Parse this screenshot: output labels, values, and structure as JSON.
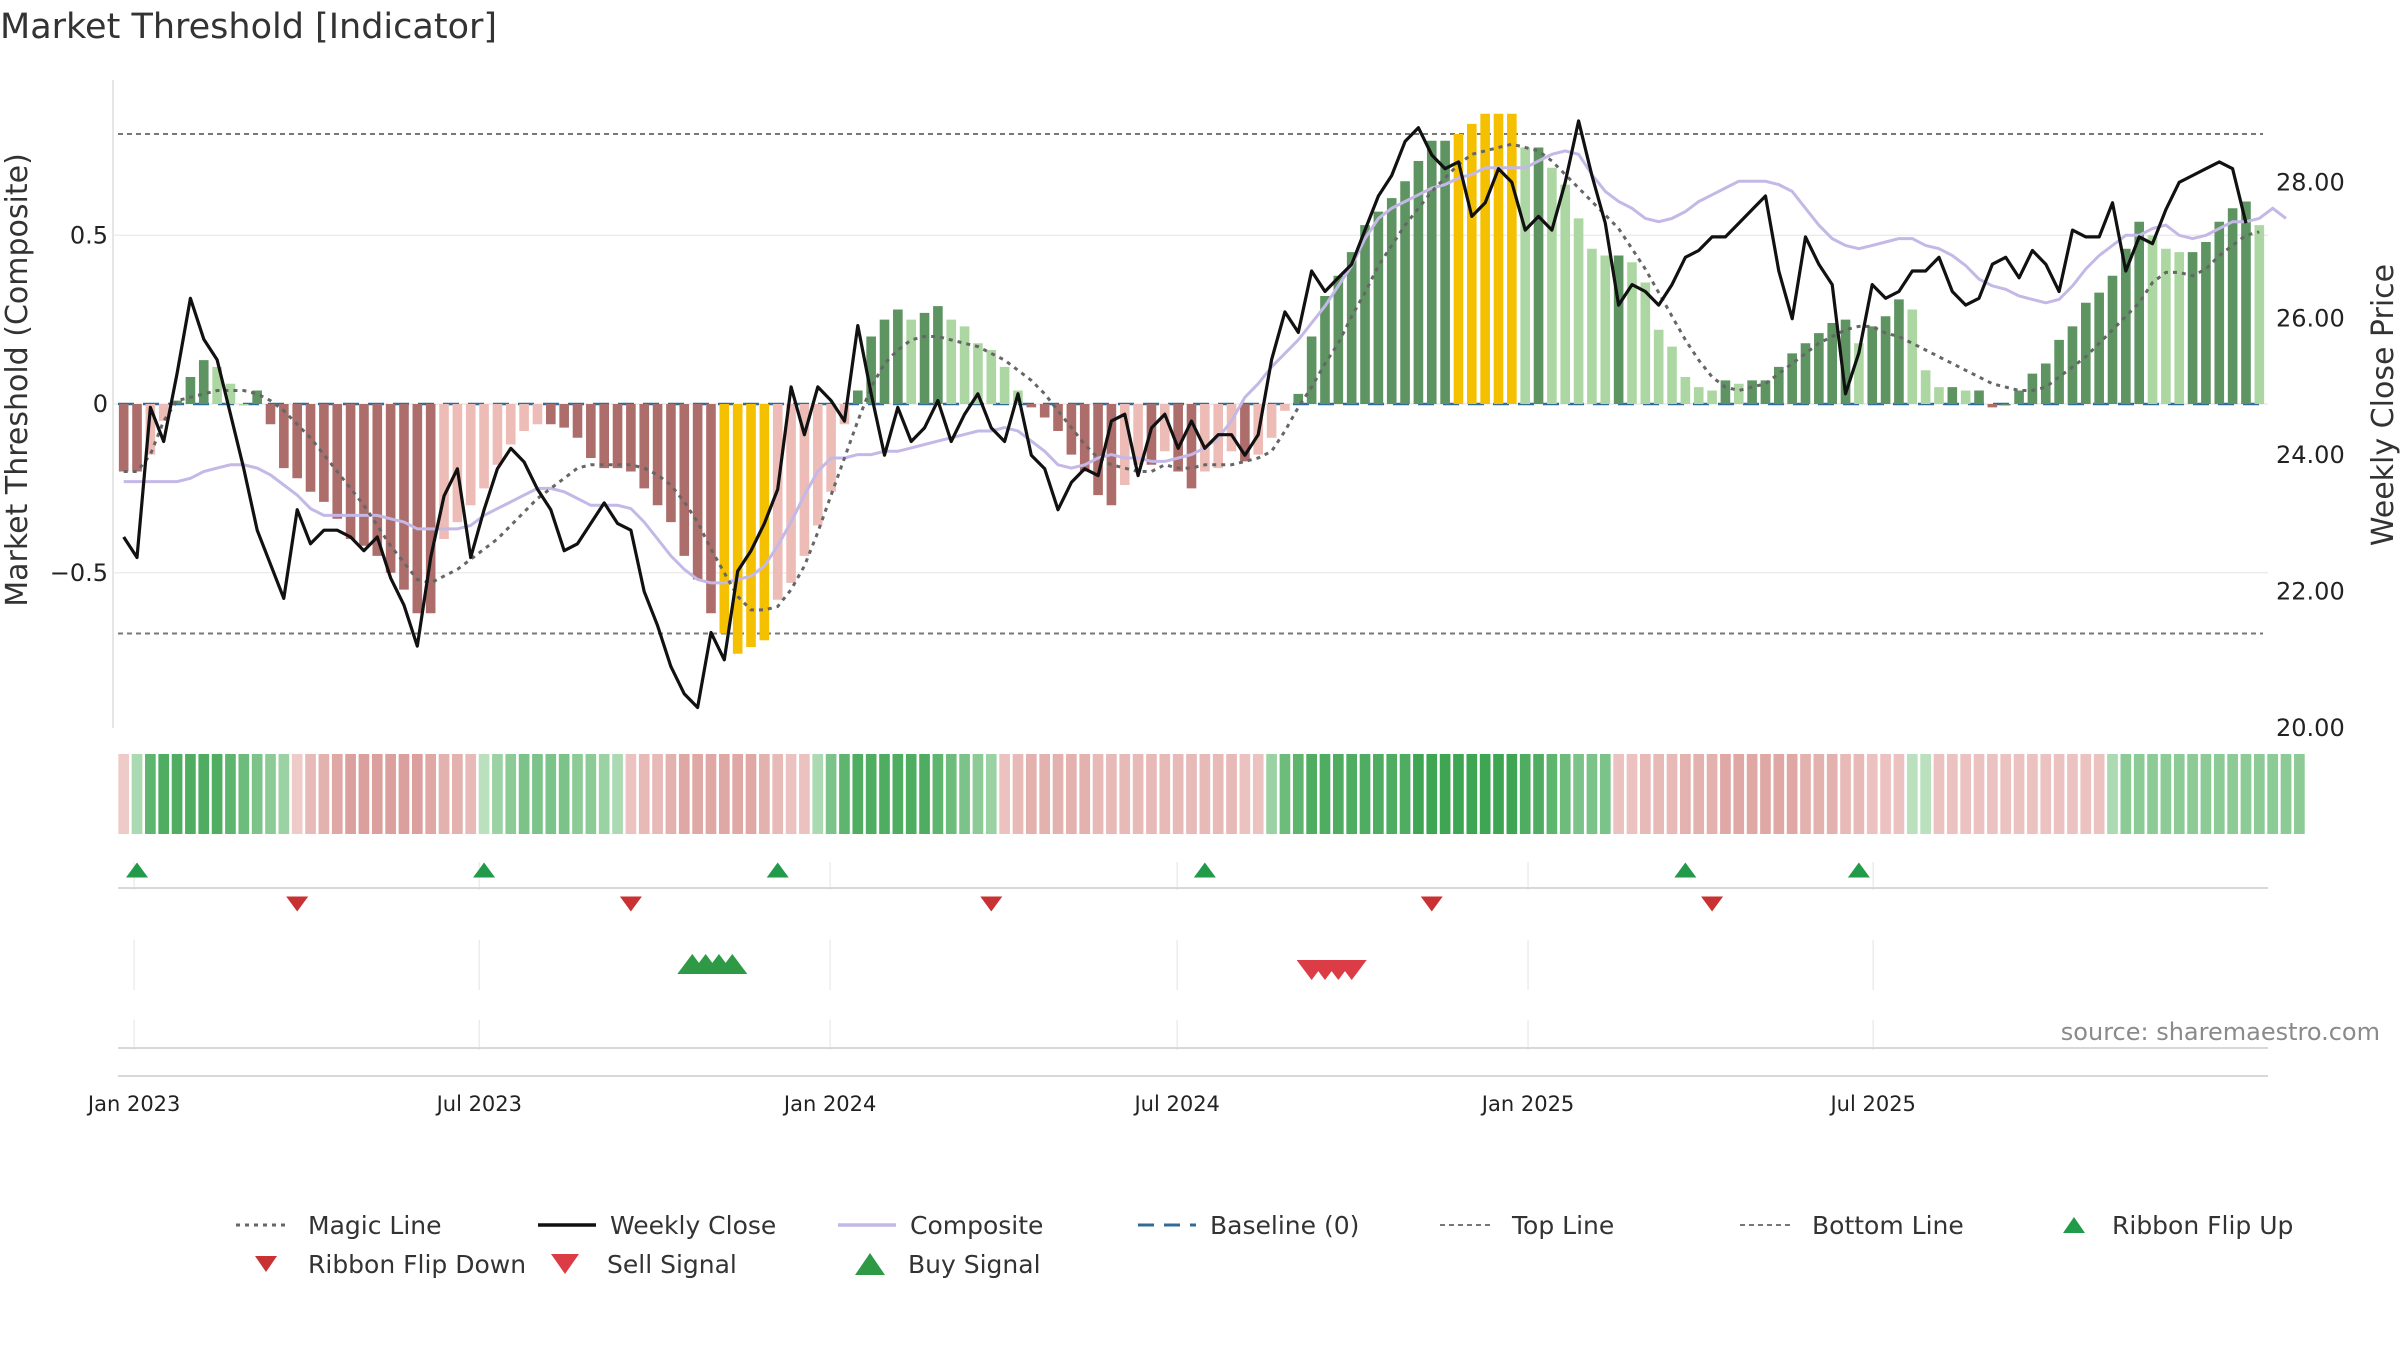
{
  "chart_data": {
    "type": "bar",
    "title": "Market Threshold [Indicator]",
    "ylabel_left": "Market Threshold (Composite)",
    "ylabel_right": "Weekly Close Price",
    "source": "source: sharemaestro.com",
    "left_axis": {
      "ylim": [
        -0.96,
        0.96
      ],
      "ticks": [
        0.5,
        0,
        -0.5
      ],
      "tick_labels": [
        "0.5",
        "0",
        "−0.5"
      ]
    },
    "right_axis": {
      "ylim": [
        20.0,
        29.5
      ],
      "ticks": [
        28,
        26,
        24,
        22,
        20
      ],
      "tick_labels": [
        "28.00",
        "26.00",
        "24.00",
        "22.00",
        "20.00"
      ]
    },
    "top_line": 0.8,
    "bottom_line": -0.68,
    "baseline": 0,
    "grid": true,
    "legend_position": "bottom",
    "x_start": "2022-12-23",
    "x_ticks": [
      "2023-01-01",
      "2023-07-01",
      "2024-01-01",
      "2024-07-01",
      "2025-01-01",
      "2025-07-01"
    ],
    "x_tick_labels": [
      "Jan 2023",
      "Jul 2023",
      "Jan 2024",
      "Jul 2024",
      "Jan 2025",
      "Jul 2025"
    ],
    "composite_bars": [
      -0.2,
      -0.2,
      -0.15,
      -0.05,
      0.01,
      0.08,
      0.13,
      0.11,
      0.06,
      0,
      0.04,
      -0.06,
      -0.19,
      -0.22,
      -0.26,
      -0.29,
      -0.34,
      -0.4,
      -0.42,
      -0.45,
      -0.5,
      -0.55,
      -0.62,
      -0.62,
      -0.4,
      -0.35,
      -0.3,
      -0.25,
      -0.18,
      -0.12,
      -0.08,
      -0.06,
      -0.06,
      -0.07,
      -0.1,
      -0.16,
      -0.19,
      -0.19,
      -0.2,
      -0.25,
      -0.3,
      -0.35,
      -0.45,
      -0.52,
      -0.62,
      -0.68,
      -0.74,
      -0.72,
      -0.7,
      -0.58,
      -0.53,
      -0.45,
      -0.36,
      -0.26,
      -0.06,
      0.04,
      0.2,
      0.25,
      0.28,
      0.25,
      0.27,
      0.29,
      0.25,
      0.23,
      0.18,
      0.16,
      0.11,
      0.04,
      -0.01,
      -0.04,
      -0.08,
      -0.15,
      -0.2,
      -0.27,
      -0.3,
      -0.24,
      -0.18,
      -0.18,
      -0.14,
      -0.2,
      -0.25,
      -0.2,
      -0.19,
      -0.14,
      -0.17,
      -0.15,
      -0.1,
      -0.02,
      0.03,
      0.2,
      0.32,
      0.38,
      0.45,
      0.53,
      0.57,
      0.61,
      0.66,
      0.72,
      0.78,
      0.78,
      0.8,
      0.83,
      0.86,
      0.86,
      0.86,
      0.76,
      0.76,
      0.7,
      0.65,
      0.55,
      0.46,
      0.44,
      0.44,
      0.42,
      0.36,
      0.22,
      0.17,
      0.08,
      0.05,
      0.04,
      0.07,
      0.06,
      0.07,
      0.07,
      0.11,
      0.15,
      0.18,
      0.21,
      0.24,
      0.25,
      0.18,
      0.23,
      0.26,
      0.31,
      0.28,
      0.1,
      0.05,
      0.05,
      0.04,
      0.04,
      -0.01,
      0,
      0.04,
      0.09,
      0.12,
      0.19,
      0.23,
      0.3,
      0.33,
      0.38,
      0.46,
      0.54,
      0.5,
      0.46,
      0.45,
      0.45,
      0.48,
      0.54,
      0.58,
      0.6,
      0.53
    ],
    "weekly_close": [
      22.8,
      22.5,
      24.7,
      24.2,
      25.2,
      26.3,
      25.7,
      25.4,
      24.6,
      23.8,
      22.9,
      22.4,
      21.9,
      23.2,
      22.7,
      22.9,
      22.9,
      22.8,
      22.6,
      22.8,
      22.2,
      21.8,
      21.2,
      22.5,
      23.4,
      23.8,
      22.5,
      23.2,
      23.8,
      24.1,
      23.9,
      23.5,
      23.2,
      22.6,
      22.7,
      23.0,
      23.3,
      23.0,
      22.9,
      22.0,
      21.5,
      20.9,
      20.5,
      20.3,
      21.4,
      21.0,
      22.3,
      22.6,
      23.0,
      23.5,
      25.0,
      24.3,
      25.0,
      24.8,
      24.5,
      25.9,
      24.9,
      24.0,
      24.7,
      24.2,
      24.4,
      24.8,
      24.2,
      24.6,
      24.9,
      24.4,
      24.2,
      24.9,
      24.0,
      23.8,
      23.2,
      23.6,
      23.8,
      23.7,
      24.5,
      24.6,
      23.7,
      24.4,
      24.6,
      24.1,
      24.5,
      24.1,
      24.3,
      24.3,
      24.0,
      24.3,
      25.4,
      26.1,
      25.8,
      26.7,
      26.4,
      26.6,
      26.8,
      27.3,
      27.8,
      28.1,
      28.6,
      28.8,
      28.4,
      28.2,
      28.3,
      27.5,
      27.7,
      28.2,
      28.0,
      27.3,
      27.5,
      27.3,
      28.0,
      28.9,
      28.1,
      27.4,
      26.2,
      26.5,
      26.4,
      26.2,
      26.5,
      26.9,
      27.0,
      27.2,
      27.2,
      27.4,
      27.6,
      27.8,
      26.7,
      26.0,
      27.2,
      26.8,
      26.5,
      24.9,
      25.5,
      26.5,
      26.3,
      26.4,
      26.7,
      26.7,
      26.9,
      26.4,
      26.2,
      26.3,
      26.8,
      26.9,
      26.6,
      27.0,
      26.8,
      26.4,
      27.3,
      27.2,
      27.2,
      27.7,
      26.7,
      27.2,
      27.1,
      27.6,
      28.0,
      28.1,
      28.2,
      28.3,
      28.2,
      27.4
    ],
    "composite_line": [
      -0.23,
      -0.23,
      -0.23,
      -0.23,
      -0.23,
      -0.22,
      -0.2,
      -0.19,
      -0.18,
      -0.18,
      -0.19,
      -0.21,
      -0.24,
      -0.27,
      -0.31,
      -0.33,
      -0.33,
      -0.33,
      -0.33,
      -0.33,
      -0.34,
      -0.35,
      -0.37,
      -0.37,
      -0.37,
      -0.37,
      -0.36,
      -0.33,
      -0.31,
      -0.29,
      -0.27,
      -0.25,
      -0.25,
      -0.26,
      -0.28,
      -0.3,
      -0.3,
      -0.3,
      -0.31,
      -0.35,
      -0.4,
      -0.45,
      -0.49,
      -0.52,
      -0.53,
      -0.53,
      -0.52,
      -0.51,
      -0.48,
      -0.42,
      -0.35,
      -0.27,
      -0.2,
      -0.16,
      -0.16,
      -0.15,
      -0.15,
      -0.14,
      -0.14,
      -0.13,
      -0.12,
      -0.11,
      -0.1,
      -0.09,
      -0.08,
      -0.08,
      -0.07,
      -0.08,
      -0.11,
      -0.14,
      -0.18,
      -0.19,
      -0.18,
      -0.16,
      -0.15,
      -0.16,
      -0.16,
      -0.17,
      -0.17,
      -0.16,
      -0.15,
      -0.13,
      -0.1,
      -0.05,
      0.02,
      0.06,
      0.11,
      0.15,
      0.19,
      0.24,
      0.29,
      0.35,
      0.41,
      0.49,
      0.55,
      0.58,
      0.6,
      0.62,
      0.64,
      0.65,
      0.67,
      0.68,
      0.7,
      0.7,
      0.7,
      0.7,
      0.72,
      0.74,
      0.75,
      0.74,
      0.68,
      0.63,
      0.6,
      0.58,
      0.55,
      0.54,
      0.55,
      0.57,
      0.6,
      0.62,
      0.64,
      0.66,
      0.66,
      0.66,
      0.65,
      0.63,
      0.58,
      0.53,
      0.49,
      0.47,
      0.46,
      0.47,
      0.48,
      0.49,
      0.49,
      0.47,
      0.46,
      0.44,
      0.41,
      0.37,
      0.35,
      0.34,
      0.32,
      0.31,
      0.3,
      0.31,
      0.35,
      0.4,
      0.44,
      0.47,
      0.5,
      0.5,
      0.52,
      0.53,
      0.5,
      0.49,
      0.5,
      0.52,
      0.54,
      0.54,
      0.55,
      0.58,
      0.55
    ],
    "magic_line": [
      -0.2,
      -0.2,
      -0.15,
      -0.05,
      0.01,
      0.02,
      0.03,
      0.04,
      0.04,
      0.04,
      0.03,
      0.01,
      -0.02,
      -0.06,
      -0.1,
      -0.15,
      -0.2,
      -0.25,
      -0.3,
      -0.36,
      -0.42,
      -0.47,
      -0.52,
      -0.53,
      -0.51,
      -0.49,
      -0.46,
      -0.43,
      -0.4,
      -0.36,
      -0.32,
      -0.28,
      -0.25,
      -0.22,
      -0.19,
      -0.18,
      -0.18,
      -0.18,
      -0.18,
      -0.19,
      -0.21,
      -0.24,
      -0.29,
      -0.35,
      -0.43,
      -0.5,
      -0.57,
      -0.61,
      -0.61,
      -0.6,
      -0.55,
      -0.48,
      -0.38,
      -0.27,
      -0.16,
      -0.05,
      0.05,
      0.12,
      0.16,
      0.19,
      0.2,
      0.2,
      0.19,
      0.18,
      0.17,
      0.15,
      0.13,
      0.1,
      0.07,
      0.03,
      -0.02,
      -0.07,
      -0.12,
      -0.16,
      -0.18,
      -0.19,
      -0.2,
      -0.2,
      -0.18,
      -0.19,
      -0.19,
      -0.18,
      -0.18,
      -0.18,
      -0.17,
      -0.16,
      -0.14,
      -0.08,
      -0.01,
      0.05,
      0.12,
      0.18,
      0.26,
      0.33,
      0.41,
      0.47,
      0.53,
      0.58,
      0.63,
      0.67,
      0.71,
      0.74,
      0.75,
      0.76,
      0.77,
      0.76,
      0.75,
      0.72,
      0.68,
      0.64,
      0.6,
      0.56,
      0.52,
      0.46,
      0.4,
      0.33,
      0.26,
      0.19,
      0.13,
      0.08,
      0.05,
      0.04,
      0.05,
      0.06,
      0.09,
      0.12,
      0.15,
      0.18,
      0.2,
      0.22,
      0.23,
      0.23,
      0.21,
      0.2,
      0.18,
      0.16,
      0.14,
      0.12,
      0.1,
      0.08,
      0.06,
      0.05,
      0.04,
      0.04,
      0.05,
      0.08,
      0.11,
      0.14,
      0.18,
      0.22,
      0.26,
      0.3,
      0.36,
      0.39,
      0.39,
      0.38,
      0.4,
      0.44,
      0.47,
      0.5,
      0.51
    ],
    "ribbon_strength": [
      -0.2,
      0.3,
      0.8,
      0.9,
      0.9,
      0.9,
      0.9,
      0.9,
      0.8,
      0.7,
      0.6,
      0.5,
      0.4,
      -0.2,
      -0.4,
      -0.5,
      -0.6,
      -0.7,
      -0.7,
      -0.7,
      -0.7,
      -0.7,
      -0.7,
      -0.6,
      -0.5,
      -0.5,
      -0.4,
      0.2,
      0.4,
      0.5,
      0.6,
      0.6,
      0.6,
      0.6,
      0.5,
      0.5,
      0.4,
      0.3,
      -0.3,
      -0.4,
      -0.4,
      -0.5,
      -0.6,
      -0.6,
      -0.6,
      -0.6,
      -0.6,
      -0.6,
      -0.5,
      -0.4,
      -0.3,
      -0.3,
      0.3,
      0.6,
      0.8,
      0.9,
      0.9,
      0.9,
      0.9,
      0.9,
      0.9,
      0.8,
      0.7,
      0.6,
      0.5,
      0.4,
      -0.3,
      -0.4,
      -0.5,
      -0.5,
      -0.5,
      -0.5,
      -0.5,
      -0.4,
      -0.4,
      -0.4,
      -0.4,
      -0.4,
      -0.4,
      -0.4,
      -0.4,
      -0.4,
      -0.4,
      -0.4,
      -0.3,
      -0.3,
      0.4,
      0.7,
      0.8,
      0.9,
      0.9,
      0.9,
      0.9,
      0.9,
      0.9,
      0.9,
      0.9,
      1,
      1,
      1,
      1,
      1,
      1,
      1,
      1,
      0.9,
      0.9,
      0.8,
      0.7,
      0.6,
      0.6,
      0.6,
      -0.3,
      -0.3,
      -0.4,
      -0.4,
      -0.4,
      -0.5,
      -0.5,
      -0.5,
      -0.6,
      -0.6,
      -0.6,
      -0.6,
      -0.6,
      -0.6,
      -0.5,
      -0.5,
      -0.5,
      -0.4,
      -0.4,
      -0.3,
      -0.3,
      -0.3,
      0.2,
      0.2,
      -0.3,
      -0.3,
      -0.3,
      -0.3,
      -0.3,
      -0.3,
      -0.3,
      -0.3,
      -0.3,
      -0.3,
      -0.3,
      -0.3,
      -0.3,
      0.3,
      0.5,
      0.5,
      0.5,
      0.5,
      0.5,
      0.5,
      0.5,
      0.5,
      0.5,
      0.5,
      0.5,
      0.5,
      0.5,
      0.5
    ],
    "ribbon_flip_up": [
      1,
      27,
      49,
      81,
      117,
      130
    ],
    "ribbon_flip_down": [
      13,
      38,
      65,
      98,
      119
    ],
    "buy_signals": [
      42,
      43,
      44,
      45
    ],
    "sell_signals": [
      89,
      90,
      91,
      92
    ],
    "colors": {
      "gold": "#f5c000",
      "strong_green": "#5e9362",
      "light_green": "#acd7a2",
      "strong_red": "#ad6d6b",
      "light_red": "#eebcb6",
      "magic_line": "#666666",
      "weekly_close": "#111111",
      "composite_line": "#c4b8e6",
      "baseline": "#2f6c9a",
      "threshold_line": "#777777",
      "ribbon_flip_up": "#219a4a",
      "ribbon_flip_down": "#c83232",
      "sell_signal": "#dc3c46",
      "buy_signal": "#2e9a46"
    },
    "legend": [
      {
        "label": "Magic Line",
        "symbol": "dotted"
      },
      {
        "label": "Weekly Close",
        "symbol": "solid"
      },
      {
        "label": "Composite",
        "symbol": "composite"
      },
      {
        "label": "Baseline (0)",
        "symbol": "dashed"
      },
      {
        "label": "Top Line",
        "symbol": "finedash"
      },
      {
        "label": "Bottom Line",
        "symbol": "finedash"
      },
      {
        "label": "Ribbon Flip Up",
        "symbol": "tri-up-small"
      },
      {
        "label": "Ribbon Flip Down",
        "symbol": "tri-down-small"
      },
      {
        "label": "Sell Signal",
        "symbol": "tri-down-big"
      },
      {
        "label": "Buy Signal",
        "symbol": "tri-up-big"
      }
    ]
  }
}
